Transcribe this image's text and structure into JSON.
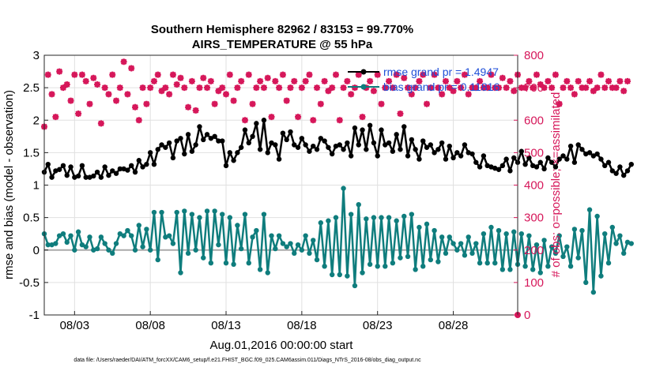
{
  "chart_data": {
    "type": "line",
    "title": "Southern Hemisphere 82962 / 83153 = 99.770%",
    "subtitle": "AIRS_TEMPERATURE @ 55 hPa",
    "xlabel": "Aug.01,2016 00:00:00 start",
    "ylabel_left": "rmse and bias (model - observation)",
    "ylabel_right": "# of obs: o=possible; ×=assimilated",
    "xticks": [
      "08/03",
      "08/08",
      "08/13",
      "08/18",
      "08/23",
      "08/28"
    ],
    "yticks_left": [
      "-1",
      "-0.5",
      "0",
      "0.5",
      "1",
      "1.5",
      "2",
      "2.5",
      "3"
    ],
    "yticks_right": [
      "0",
      "100",
      "200",
      "300",
      "400",
      "500",
      "600",
      "700",
      "800"
    ],
    "xlim": [
      1.0,
      32.25
    ],
    "ylim_left": [
      -1,
      3
    ],
    "ylim_right": [
      0,
      800
    ],
    "grid": true,
    "legend_position": "top-right",
    "colors": {
      "rmse": "#000000",
      "bias": "#0f7d7d",
      "obs": "#d6175a",
      "zero": "#aaaaaa",
      "grid": "#e0e0e0"
    },
    "footer": "data file: /Users/raeder/DAI/ATM_forcXX/CAM6_setup/f.e21.FHIST_BGC.f09_025.CAM6assim.011/Diags_NTrS_2016-08/obs_diag_output.nc",
    "series": [
      {
        "name": "rmse grand pr = 1.4947",
        "axis": "left",
        "x_start": 1.0,
        "x_step": 0.25,
        "values": [
          1.2,
          1.32,
          1.12,
          1.22,
          1.24,
          1.3,
          1.15,
          1.28,
          1.12,
          1.14,
          1.3,
          1.12,
          1.12,
          1.14,
          1.2,
          1.12,
          1.28,
          1.15,
          1.22,
          1.18,
          1.25,
          1.25,
          1.23,
          1.3,
          1.2,
          1.38,
          1.28,
          1.32,
          1.5,
          1.32,
          1.55,
          1.62,
          1.58,
          1.65,
          1.42,
          1.68,
          1.72,
          1.48,
          1.78,
          1.52,
          1.62,
          1.9,
          1.7,
          1.78,
          1.72,
          1.75,
          1.68,
          1.68,
          1.3,
          1.5,
          1.38,
          1.5,
          1.58,
          1.85,
          1.65,
          1.75,
          1.95,
          1.55,
          2.0,
          1.5,
          1.65,
          1.62,
          1.4,
          1.8,
          1.7,
          1.82,
          1.62,
          1.58,
          1.72,
          1.62,
          1.52,
          1.6,
          1.55,
          1.72,
          1.68,
          1.58,
          1.48,
          1.6,
          1.62,
          1.55,
          1.65,
          1.45,
          1.88,
          1.62,
          1.85,
          1.55,
          1.92,
          1.65,
          1.45,
          1.85,
          1.62,
          1.65,
          1.52,
          1.78,
          1.55,
          1.9,
          1.45,
          1.7,
          1.55,
          1.4,
          1.68,
          1.58,
          1.62,
          1.5,
          1.55,
          1.65,
          1.4,
          1.6,
          1.42,
          1.5,
          1.45,
          1.62,
          1.5,
          1.48,
          1.35,
          1.28,
          1.45,
          1.3,
          1.28,
          1.26,
          1.24,
          1.3,
          1.4,
          1.22,
          1.42,
          1.35,
          1.52,
          1.32,
          1.42,
          1.3,
          1.28,
          1.35,
          1.25,
          1.42,
          1.35,
          1.28,
          1.4,
          1.45,
          1.4,
          1.6,
          1.35,
          1.62,
          1.55,
          1.48,
          1.5,
          1.45,
          1.48,
          1.4,
          1.3,
          1.35,
          1.22,
          1.18,
          1.28,
          1.15,
          1.22,
          1.32
        ]
      },
      {
        "name": "bias grand pr = 0.11816",
        "axis": "left",
        "x_start": 1.0,
        "x_step": 0.25,
        "values": [
          0.25,
          0.08,
          0.08,
          0.1,
          0.22,
          0.25,
          0.12,
          0.22,
          0.0,
          0.28,
          0.08,
          0.05,
          0.2,
          0.0,
          0.02,
          0.2,
          0.1,
          0.0,
          -0.05,
          0.1,
          0.25,
          0.22,
          0.3,
          0.22,
          0.0,
          0.38,
          0.05,
          0.32,
          0.0,
          0.58,
          -0.15,
          0.58,
          0.2,
          0.22,
          0.1,
          0.58,
          -0.35,
          0.6,
          -0.05,
          0.55,
          0.0,
          0.5,
          -0.12,
          0.6,
          -0.2,
          0.6,
          0.08,
          0.55,
          -0.2,
          0.5,
          -0.22,
          0.38,
          0.02,
          0.55,
          -0.2,
          0.2,
          0.3,
          -0.3,
          0.55,
          -0.35,
          0.22,
          0.02,
          0.22,
          0.1,
          0.05,
          0.1,
          -0.05,
          0.08,
          0.0,
          0.22,
          -0.05,
          0.15,
          -0.15,
          0.42,
          -0.25,
          0.45,
          -0.38,
          0.5,
          -0.38,
          0.95,
          -0.4,
          0.55,
          -0.55,
          0.7,
          -0.35,
          0.48,
          -0.22,
          0.5,
          -0.25,
          0.5,
          -0.25,
          0.5,
          -0.2,
          0.45,
          -0.12,
          0.52,
          -0.1,
          0.55,
          -0.3,
          0.35,
          -0.25,
          0.4,
          -0.15,
          0.3,
          -0.18,
          0.2,
          -0.05,
          0.2,
          0.1,
          0.0,
          0.1,
          -0.08,
          0.2,
          -0.05,
          0.1,
          -0.2,
          0.25,
          -0.2,
          0.35,
          -0.2,
          0.3,
          -0.3,
          0.25,
          -0.3,
          0.28,
          -0.22,
          0.25,
          -0.25,
          0.22,
          -0.3,
          0.08,
          -0.35,
          0.15,
          -0.25,
          0.05,
          -0.05,
          0.22,
          -0.1,
          0.05,
          -0.25,
          0.32,
          -0.12,
          0.3,
          -0.5,
          0.62,
          -0.65,
          0.52,
          -0.4,
          0.25,
          -0.2,
          0.35,
          0.1,
          0.22,
          -0.05,
          0.12,
          0.1
        ]
      },
      {
        "name": "obs possible",
        "axis": "right",
        "x_start": 1.0,
        "x_step": 0.25,
        "values": [
          580,
          740,
          680,
          610,
          750,
          700,
          710,
          660,
          740,
          620,
          740,
          720,
          650,
          730,
          710,
          590,
          700,
          680,
          740,
          660,
          700,
          780,
          680,
          760,
          640,
          600,
          700,
          650,
          700,
          720,
          740,
          690,
          700,
          680,
          740,
          710,
          730,
          700,
          640,
          720,
          630,
          700,
          730,
          700,
          720,
          650,
          690,
          700,
          680,
          740,
          660,
          700,
          720,
          600,
          740,
          650,
          700,
          720,
          700,
          730,
          610,
          720,
          700,
          740,
          660,
          700,
          720,
          610,
          700,
          720,
          740,
          600,
          700,
          650,
          720,
          690,
          700,
          740,
          600,
          700,
          720,
          680,
          700,
          740,
          610,
          700,
          720,
          690,
          740,
          650,
          700,
          720,
          700,
          740,
          620,
          730,
          700,
          680,
          700,
          720,
          740,
          650,
          700,
          740,
          700,
          680,
          720,
          700,
          690,
          720,
          700,
          740,
          680,
          700,
          700,
          720,
          700,
          700,
          740,
          700,
          700,
          730,
          700,
          720,
          690,
          740,
          700,
          700,
          720,
          700,
          740,
          710,
          700,
          720,
          700,
          740,
          650,
          700,
          720,
          700,
          680,
          720,
          700,
          700,
          720,
          690,
          700,
          740,
          700,
          720,
          700,
          700,
          720,
          690,
          720
        ]
      },
      {
        "name": "obs assimilated",
        "axis": "right",
        "x_start": 1.0,
        "x_step": 0.25,
        "values": [
          580,
          740,
          680,
          610,
          750,
          700,
          710,
          660,
          740,
          620,
          740,
          720,
          650,
          730,
          710,
          590,
          700,
          680,
          740,
          660,
          700,
          780,
          680,
          760,
          640,
          600,
          700,
          650,
          700,
          720,
          740,
          690,
          700,
          680,
          740,
          710,
          730,
          700,
          640,
          720,
          630,
          700,
          730,
          700,
          720,
          650,
          690,
          700,
          680,
          740,
          660,
          700,
          720,
          600,
          740,
          650,
          700,
          720,
          700,
          730,
          610,
          720,
          700,
          740,
          660,
          700,
          720,
          610,
          700,
          720,
          740,
          600,
          700,
          650,
          720,
          690,
          700,
          740,
          600,
          700,
          720,
          680,
          700,
          740,
          610,
          700,
          720,
          690,
          740,
          650,
          700,
          720,
          700,
          740,
          620,
          730,
          700,
          680,
          700,
          720,
          740,
          650,
          700,
          740,
          700,
          680,
          720,
          700,
          690,
          720,
          700,
          740,
          680,
          700,
          700,
          720,
          700,
          700,
          740,
          700,
          700,
          730,
          700,
          720,
          690,
          740,
          700,
          700,
          720,
          700,
          740,
          710,
          700,
          720,
          700,
          740,
          650,
          700,
          720,
          700,
          680,
          720,
          700,
          700,
          720,
          690,
          700,
          740,
          700,
          720,
          700,
          700,
          720,
          690,
          720
        ]
      }
    ]
  }
}
